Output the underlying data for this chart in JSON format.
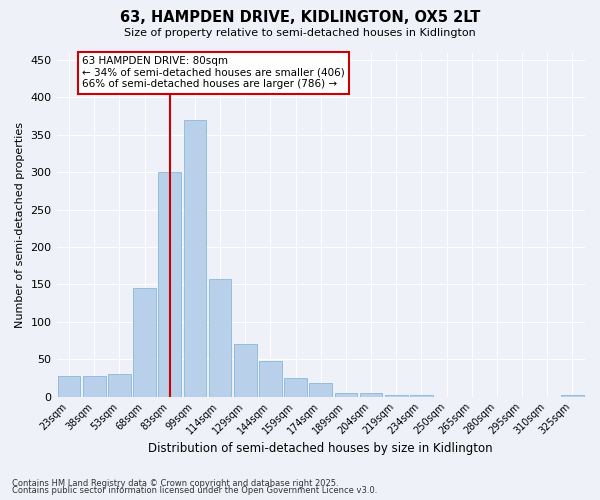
{
  "title": "63, HAMPDEN DRIVE, KIDLINGTON, OX5 2LT",
  "subtitle": "Size of property relative to semi-detached houses in Kidlington",
  "xlabel": "Distribution of semi-detached houses by size in Kidlington",
  "ylabel": "Number of semi-detached properties",
  "categories": [
    "23sqm",
    "38sqm",
    "53sqm",
    "68sqm",
    "83sqm",
    "99sqm",
    "114sqm",
    "129sqm",
    "144sqm",
    "159sqm",
    "174sqm",
    "189sqm",
    "204sqm",
    "219sqm",
    "234sqm",
    "250sqm",
    "265sqm",
    "280sqm",
    "295sqm",
    "310sqm",
    "325sqm"
  ],
  "values": [
    28,
    28,
    30,
    145,
    300,
    370,
    157,
    70,
    48,
    25,
    18,
    5,
    5,
    2,
    2,
    0,
    0,
    0,
    0,
    0,
    2
  ],
  "bar_color": "#b8d0ea",
  "bar_edge_color": "#7bafd4",
  "property_label": "63 HAMPDEN DRIVE: 80sqm",
  "pct_smaller": 34,
  "pct_larger": 66,
  "count_smaller": 406,
  "count_larger": 786,
  "ylim": [
    0,
    460
  ],
  "yticks": [
    0,
    50,
    100,
    150,
    200,
    250,
    300,
    350,
    400,
    450
  ],
  "annotation_box_color": "#ffffff",
  "annotation_box_edge": "#cc0000",
  "vline_color": "#cc0000",
  "bg_color": "#eef2f8",
  "grid_color": "#ffffff",
  "footer1": "Contains HM Land Registry data © Crown copyright and database right 2025.",
  "footer2": "Contains public sector information licensed under the Open Government Licence v3.0."
}
